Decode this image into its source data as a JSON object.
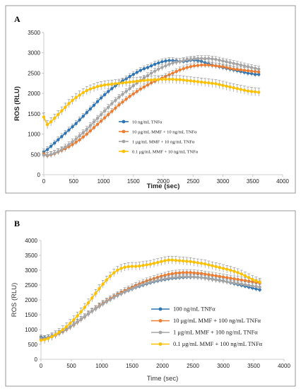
{
  "colors": {
    "blue": "#2e75b6",
    "orange": "#ed7d31",
    "gray": "#a5a5a5",
    "yellow": "#ffc000"
  },
  "chart_data": [
    {
      "panel": "A",
      "type": "line",
      "xlabel": "Time (sec)",
      "ylabel": "ROS (RLU)",
      "xlim": [
        0,
        4000
      ],
      "ylim": [
        0,
        3500
      ],
      "xticks": [
        "0",
        "500",
        "1000",
        "1500",
        "2000",
        "2500",
        "3000",
        "3500",
        "4000"
      ],
      "yticks": [
        "0",
        "500",
        "1000",
        "1500",
        "2000",
        "2500",
        "3000",
        "3500"
      ],
      "x": [
        0,
        60,
        120,
        180,
        240,
        300,
        360,
        420,
        480,
        540,
        600,
        660,
        720,
        780,
        840,
        900,
        960,
        1020,
        1080,
        1140,
        1200,
        1260,
        1320,
        1380,
        1440,
        1500,
        1560,
        1620,
        1680,
        1740,
        1800,
        1860,
        1920,
        1980,
        2040,
        2100,
        2160,
        2220,
        2280,
        2340,
        2400,
        2460,
        2520,
        2580,
        2640,
        2700,
        2760,
        2820,
        2880,
        2940,
        3000,
        3060,
        3120,
        3180,
        3240,
        3300,
        3360,
        3420,
        3480,
        3540,
        3600
      ],
      "legend": "center-right",
      "series": [
        {
          "name": "10 ng/mL TNFα",
          "color": "#2e75b6",
          "err": 70,
          "values": [
            560,
            620,
            700,
            780,
            860,
            940,
            1020,
            1100,
            1180,
            1260,
            1350,
            1440,
            1530,
            1620,
            1710,
            1800,
            1890,
            1970,
            2050,
            2120,
            2190,
            2250,
            2310,
            2360,
            2420,
            2470,
            2520,
            2570,
            2610,
            2640,
            2680,
            2720,
            2750,
            2780,
            2800,
            2810,
            2810,
            2800,
            2790,
            2790,
            2800,
            2820,
            2820,
            2810,
            2790,
            2760,
            2730,
            2700,
            2680,
            2660,
            2640,
            2620,
            2600,
            2580,
            2560,
            2540,
            2520,
            2500,
            2490,
            2470,
            2470
          ]
        },
        {
          "name": "10 μg/mL MMF + 10 ng/mL TNFα",
          "color": "#ed7d31",
          "err": 70,
          "values": [
            520,
            470,
            490,
            520,
            560,
            600,
            640,
            690,
            740,
            800,
            860,
            930,
            1000,
            1080,
            1160,
            1240,
            1320,
            1400,
            1480,
            1560,
            1640,
            1720,
            1790,
            1860,
            1930,
            1990,
            2050,
            2110,
            2160,
            2210,
            2260,
            2300,
            2340,
            2380,
            2420,
            2460,
            2500,
            2540,
            2580,
            2610,
            2640,
            2660,
            2680,
            2690,
            2700,
            2700,
            2700,
            2690,
            2680,
            2670,
            2660,
            2640,
            2620,
            2600,
            2590,
            2580,
            2570,
            2560,
            2550,
            2540,
            2530
          ]
        },
        {
          "name": "1 μg/mL MMF + 10 ng/mL TNFα",
          "color": "#a5a5a5",
          "err": 70,
          "values": [
            480,
            480,
            500,
            530,
            570,
            620,
            680,
            740,
            810,
            880,
            960,
            1040,
            1120,
            1210,
            1300,
            1390,
            1480,
            1570,
            1660,
            1750,
            1830,
            1910,
            1980,
            2050,
            2120,
            2190,
            2260,
            2320,
            2380,
            2440,
            2500,
            2550,
            2600,
            2640,
            2680,
            2720,
            2750,
            2770,
            2790,
            2810,
            2830,
            2840,
            2850,
            2860,
            2860,
            2860,
            2860,
            2850,
            2840,
            2820,
            2800,
            2780,
            2760,
            2740,
            2720,
            2700,
            2680,
            2660,
            2640,
            2620,
            2600
          ]
        },
        {
          "name": "0.1 μg/mL MMF + 10 ng/mL TNFα",
          "color": "#ffc000",
          "err": 100,
          "values": [
            1420,
            1230,
            1300,
            1390,
            1480,
            1570,
            1660,
            1750,
            1830,
            1900,
            1960,
            2020,
            2070,
            2110,
            2140,
            2170,
            2190,
            2210,
            2220,
            2230,
            2240,
            2250,
            2260,
            2270,
            2280,
            2290,
            2300,
            2310,
            2320,
            2330,
            2330,
            2340,
            2340,
            2350,
            2350,
            2350,
            2350,
            2340,
            2340,
            2330,
            2320,
            2310,
            2300,
            2290,
            2280,
            2270,
            2260,
            2250,
            2240,
            2220,
            2200,
            2180,
            2160,
            2140,
            2120,
            2100,
            2080,
            2060,
            2050,
            2040,
            2030
          ]
        }
      ]
    },
    {
      "panel": "B",
      "type": "line",
      "xlabel": "Time (sec)",
      "ylabel": "ROS (RLU)",
      "xlim": [
        0,
        4000
      ],
      "ylim": [
        0,
        4000
      ],
      "xticks": [
        "0",
        "500",
        "1000",
        "1500",
        "2000",
        "2500",
        "3000",
        "3500",
        "4000"
      ],
      "yticks": [
        "0",
        "500",
        "1000",
        "1500",
        "2000",
        "2500",
        "3000",
        "3500",
        "4000"
      ],
      "x": [
        0,
        60,
        120,
        180,
        240,
        300,
        360,
        420,
        480,
        540,
        600,
        660,
        720,
        780,
        840,
        900,
        960,
        1020,
        1080,
        1140,
        1200,
        1260,
        1320,
        1380,
        1440,
        1500,
        1560,
        1620,
        1680,
        1740,
        1800,
        1860,
        1920,
        1980,
        2040,
        2100,
        2160,
        2220,
        2280,
        2340,
        2400,
        2460,
        2520,
        2580,
        2640,
        2700,
        2760,
        2820,
        2880,
        2940,
        3000,
        3060,
        3120,
        3180,
        3240,
        3300,
        3360,
        3420,
        3480,
        3540,
        3600
      ],
      "legend": "lower-right",
      "series": [
        {
          "name": "100 ng/mL TNFα",
          "color": "#2e75b6",
          "err": 80,
          "values": [
            740,
            720,
            740,
            780,
            830,
            880,
            940,
            1010,
            1090,
            1170,
            1260,
            1350,
            1440,
            1530,
            1620,
            1710,
            1800,
            1880,
            1950,
            2020,
            2090,
            2150,
            2210,
            2270,
            2320,
            2370,
            2420,
            2460,
            2500,
            2540,
            2580,
            2610,
            2640,
            2670,
            2690,
            2710,
            2730,
            2740,
            2750,
            2760,
            2770,
            2770,
            2770,
            2760,
            2750,
            2740,
            2720,
            2700,
            2680,
            2660,
            2640,
            2610,
            2580,
            2550,
            2520,
            2490,
            2460,
            2430,
            2400,
            2370,
            2340
          ]
        },
        {
          "name": "10 μg/mL MMF + 100 ng/mL TNFα",
          "color": "#ed7d31",
          "err": 100,
          "values": [
            680,
            690,
            720,
            760,
            810,
            870,
            930,
            1000,
            1080,
            1160,
            1250,
            1340,
            1430,
            1530,
            1620,
            1710,
            1800,
            1880,
            1960,
            2040,
            2110,
            2180,
            2250,
            2310,
            2370,
            2430,
            2490,
            2540,
            2590,
            2640,
            2680,
            2720,
            2760,
            2800,
            2830,
            2860,
            2880,
            2900,
            2910,
            2920,
            2920,
            2920,
            2910,
            2900,
            2890,
            2870,
            2850,
            2830,
            2810,
            2790,
            2770,
            2750,
            2730,
            2710,
            2690,
            2670,
            2650,
            2630,
            2610,
            2590,
            2570
          ]
        },
        {
          "name": "1 μg/mL MMF + 100 ng/mL TNFα",
          "color": "#a5a5a5",
          "err": 90,
          "values": [
            700,
            700,
            730,
            770,
            820,
            880,
            940,
            1010,
            1090,
            1170,
            1260,
            1350,
            1440,
            1530,
            1620,
            1700,
            1780,
            1860,
            1940,
            2010,
            2080,
            2150,
            2210,
            2270,
            2330,
            2380,
            2430,
            2480,
            2520,
            2560,
            2600,
            2630,
            2660,
            2690,
            2710,
            2730,
            2750,
            2760,
            2770,
            2780,
            2780,
            2780,
            2770,
            2760,
            2750,
            2730,
            2710,
            2690,
            2670,
            2650,
            2630,
            2610,
            2590,
            2570,
            2550,
            2530,
            2510,
            2490,
            2470,
            2450,
            2430
          ]
        },
        {
          "name": "0.1 μg/mL MMF + 100 ng/mL TNFα",
          "color": "#ffc000",
          "err": 130,
          "values": [
            640,
            660,
            700,
            760,
            830,
            910,
            1000,
            1100,
            1210,
            1330,
            1460,
            1600,
            1750,
            1900,
            2060,
            2220,
            2380,
            2530,
            2670,
            2800,
            2910,
            3000,
            3060,
            3100,
            3120,
            3130,
            3130,
            3140,
            3160,
            3180,
            3200,
            3230,
            3260,
            3290,
            3320,
            3340,
            3340,
            3330,
            3320,
            3310,
            3300,
            3290,
            3270,
            3250,
            3230,
            3210,
            3180,
            3150,
            3120,
            3090,
            3060,
            3030,
            3000,
            2960,
            2920,
            2870,
            2810,
            2750,
            2690,
            2640,
            2600
          ]
        }
      ]
    }
  ],
  "panels": [
    {
      "label": "A"
    },
    {
      "label": "B"
    }
  ]
}
